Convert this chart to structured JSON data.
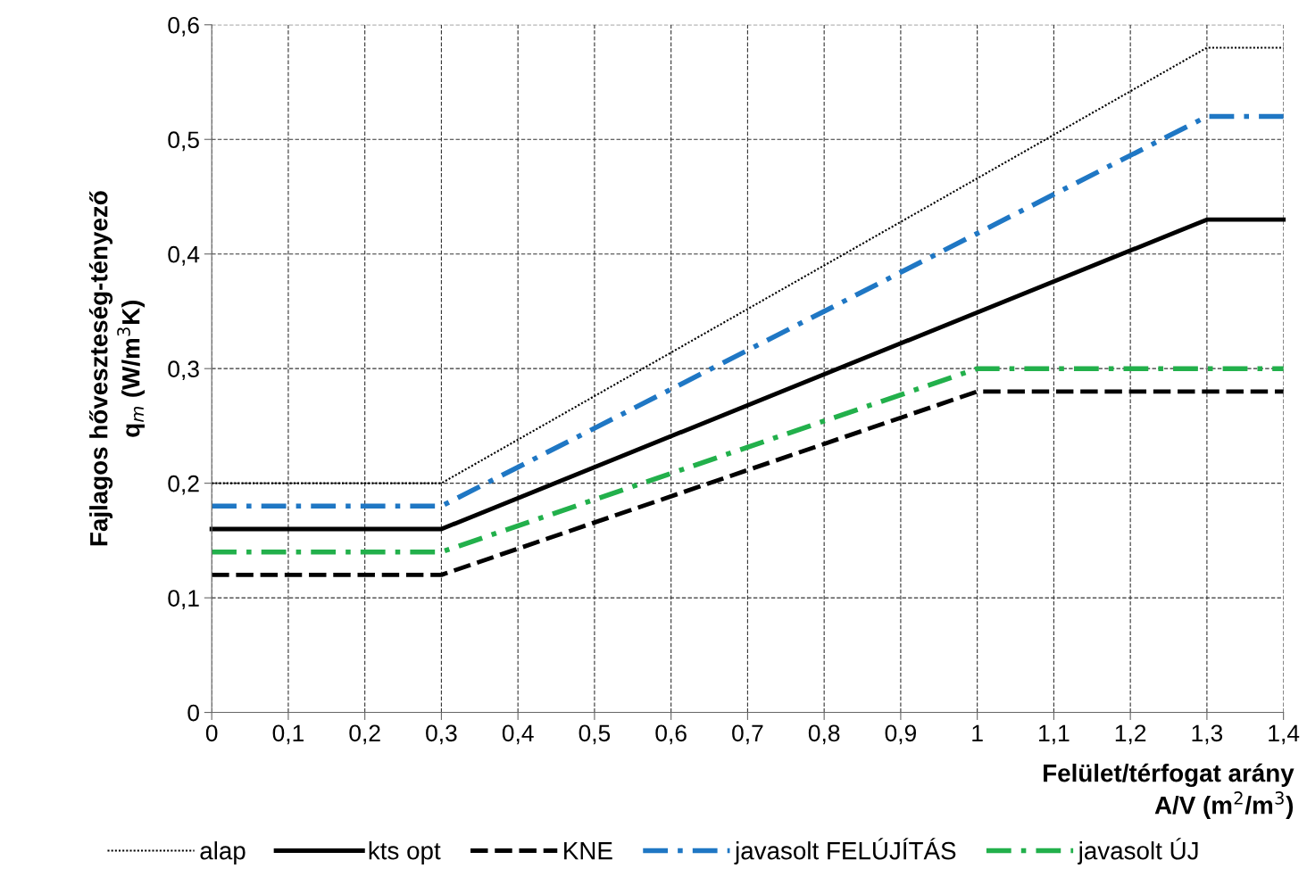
{
  "chart_data": {
    "type": "line",
    "xlabel": "Felület/térfogat arány\nA/V (m$^{2}$/m$^{3}$)",
    "ylabel": "Fajlagos hőveszteség-tényező\nq$_{m}$ (W/m$^{3}$K)",
    "xlim": [
      0,
      1.4
    ],
    "ylim": [
      0,
      0.6
    ],
    "xticks": [
      0,
      {
        "value": 0.1,
        "label": "0,1"
      },
      {
        "value": 0.2,
        "label": "0,2"
      },
      {
        "value": 0.3,
        "label": "0,3"
      },
      {
        "value": 0.4,
        "label": "0,4"
      },
      {
        "value": 0.5,
        "label": "0,5"
      },
      {
        "value": 0.6,
        "label": "0,6"
      },
      {
        "value": 0.7,
        "label": "0,7"
      },
      {
        "value": 0.8,
        "label": "0,8"
      },
      {
        "value": 0.9,
        "label": "0,9"
      },
      1,
      {
        "value": 1.1,
        "label": "1,1"
      },
      {
        "value": 1.2,
        "label": "1,2"
      },
      {
        "value": 1.3,
        "label": "1,3"
      },
      {
        "value": 1.4,
        "label": "1,4"
      }
    ],
    "yticks": [
      0,
      {
        "value": 0.1,
        "label": "0,1"
      },
      {
        "value": 0.2,
        "label": "0,2"
      },
      {
        "value": 0.3,
        "label": "0,3"
      },
      {
        "value": 0.4,
        "label": "0,4"
      },
      {
        "value": 0.5,
        "label": "0,5"
      },
      {
        "value": 0.6,
        "label": "0,6"
      }
    ],
    "grid": true,
    "legend": "bottom",
    "marker": "none",
    "series": [
      {
        "name": "alap",
        "color": "#000000",
        "line_style": "dotted",
        "x": [
          0,
          0.3,
          1.3,
          1.4
        ],
        "values": [
          0.2,
          0.2,
          0.58,
          0.58
        ]
      },
      {
        "name": "kts opt",
        "color": "#000000",
        "line_style": "solid",
        "x": [
          0,
          0.3,
          1.3,
          1.4
        ],
        "values": [
          0.16,
          0.16,
          0.43,
          0.43
        ]
      },
      {
        "name": "KNE",
        "color": "#000000",
        "line_style": "dashed",
        "x": [
          0,
          0.3,
          1.0,
          1.4
        ],
        "values": [
          0.12,
          0.12,
          0.28,
          0.28
        ]
      },
      {
        "name": "javasolt FELÚJÍTÁS",
        "color": "#1f77c4",
        "line_style": "dashdot",
        "x": [
          0,
          0.3,
          1.3,
          1.4
        ],
        "values": [
          0.18,
          0.18,
          0.52,
          0.52
        ]
      },
      {
        "name": "javasolt ÚJ",
        "color": "#22b04b",
        "line_style": "dashdot",
        "x": [
          0,
          0.3,
          1.0,
          1.4
        ],
        "values": [
          0.14,
          0.14,
          0.3,
          0.3
        ]
      }
    ]
  }
}
